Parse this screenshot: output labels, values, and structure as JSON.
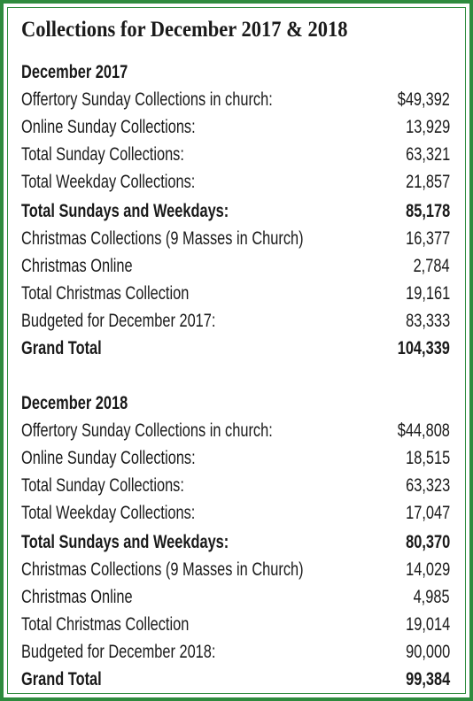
{
  "title": "Collections for December 2017 & 2018",
  "sections": [
    {
      "heading": "December 2017",
      "rows": [
        {
          "label": "Offertory Sunday Collections in church:",
          "value": "$49,392",
          "bold": false
        },
        {
          "label": "Online Sunday Collections:",
          "value": "13,929",
          "bold": false
        },
        {
          "label": "Total Sunday Collections:",
          "value": "63,321",
          "bold": false
        },
        {
          "label": "Total Weekday Collections:",
          "value": "21,857",
          "bold": false
        },
        {
          "label": "Total Sundays and Weekdays:",
          "value": "85,178",
          "bold": true
        },
        {
          "label": "Christmas Collections (9 Masses in Church)",
          "value": "16,377",
          "bold": false
        },
        {
          "label": "Christmas Online",
          "value": "2,784",
          "bold": false
        },
        {
          "label": "Total Christmas Collection",
          "value": "19,161",
          "bold": false
        },
        {
          "label": "Budgeted for December 2017:",
          "value": "83,333",
          "bold": false
        },
        {
          "label": "Grand Total",
          "value": "104,339",
          "bold": true
        }
      ]
    },
    {
      "heading": "December 2018",
      "rows": [
        {
          "label": "Offertory Sunday Collections in church:",
          "value": "$44,808",
          "bold": false
        },
        {
          "label": "Online Sunday Collections:",
          "value": "18,515",
          "bold": false
        },
        {
          "label": "Total Sunday Collections:",
          "value": "63,323",
          "bold": false
        },
        {
          "label": "Total Weekday Collections:",
          "value": "17,047",
          "bold": false
        },
        {
          "label": "Total Sundays and Weekdays:",
          "value": "80,370",
          "bold": true
        },
        {
          "label": "Christmas Collections (9 Masses in Church)",
          "value": "14,029",
          "bold": false
        },
        {
          "label": "Christmas Online",
          "value": "4,985",
          "bold": false
        },
        {
          "label": "Total Christmas Collection",
          "value": "19,014",
          "bold": false
        },
        {
          "label": "Budgeted for December 2018:",
          "value": "90,000",
          "bold": false
        },
        {
          "label": "Grand Total",
          "value": "99,384",
          "bold": true
        }
      ]
    }
  ]
}
